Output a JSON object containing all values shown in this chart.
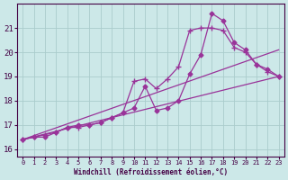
{
  "background_color": "#cce8e8",
  "grid_color": "#aacccc",
  "line_color": "#993399",
  "xlabel": "Windchill (Refroidissement éolien,°C)",
  "xlim": [
    -0.5,
    23.5
  ],
  "ylim": [
    15.7,
    22.0
  ],
  "yticks": [
    16,
    17,
    18,
    19,
    20,
    21
  ],
  "xticks": [
    0,
    1,
    2,
    3,
    4,
    5,
    6,
    7,
    8,
    9,
    10,
    11,
    12,
    13,
    14,
    15,
    16,
    17,
    18,
    19,
    20,
    21,
    22,
    23
  ],
  "series1_x": [
    0,
    1,
    2,
    3,
    4,
    5,
    6,
    7,
    8,
    9,
    10,
    11,
    12,
    13,
    14,
    15,
    16,
    17,
    18,
    19,
    20,
    21,
    22,
    23
  ],
  "series1_y": [
    16.4,
    16.5,
    16.6,
    16.7,
    16.9,
    16.9,
    17.0,
    17.1,
    17.3,
    17.5,
    18.8,
    18.9,
    18.5,
    18.9,
    19.4,
    20.9,
    21.0,
    21.0,
    20.9,
    20.2,
    20.0,
    19.5,
    19.2,
    19.0
  ],
  "series2_x": [
    0,
    1,
    2,
    3,
    4,
    5,
    6,
    7,
    8,
    9,
    10,
    11,
    12,
    13,
    14,
    15,
    16,
    17,
    18,
    19,
    20,
    21,
    22,
    23
  ],
  "series2_y": [
    16.4,
    16.5,
    16.5,
    16.7,
    16.9,
    17.0,
    17.0,
    17.1,
    17.3,
    17.5,
    17.7,
    18.6,
    17.6,
    17.7,
    18.0,
    19.1,
    19.9,
    21.6,
    21.3,
    20.4,
    20.1,
    19.5,
    19.3,
    19.0
  ],
  "line3": [
    [
      0,
      16.4
    ],
    [
      23,
      20.1
    ]
  ],
  "line4": [
    [
      0,
      16.4
    ],
    [
      23,
      19.0
    ]
  ]
}
